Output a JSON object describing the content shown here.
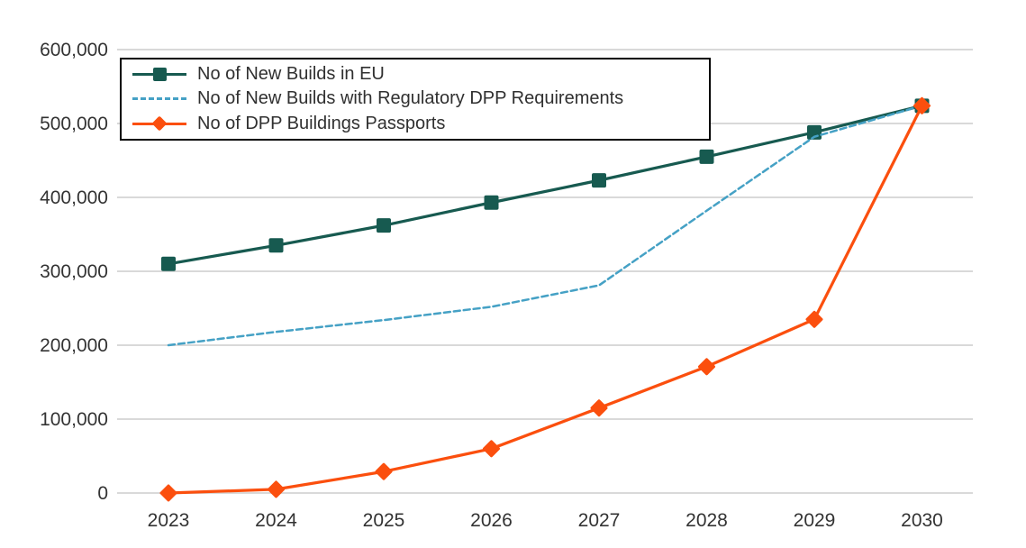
{
  "chart_data": {
    "type": "line",
    "title": "",
    "xlabel": "",
    "ylabel": "",
    "categories": [
      "2023",
      "2024",
      "2025",
      "2026",
      "2027",
      "2028",
      "2029",
      "2030"
    ],
    "series": [
      {
        "name": "No of New Builds in EU",
        "color": "#175a50",
        "line_style": "solid",
        "marker": "square",
        "values": [
          310000,
          335000,
          362000,
          393000,
          423000,
          455000,
          488000,
          524000
        ]
      },
      {
        "name": "No of New Builds with Regulatory DPP Requirements",
        "color": "#45a1c5",
        "line_style": "dashed",
        "marker": "none",
        "values": [
          200000,
          218000,
          234000,
          252000,
          281000,
          382000,
          482000,
          524000
        ]
      },
      {
        "name": "No of DPP Buildings Passports",
        "color": "#fb4f0e",
        "line_style": "solid",
        "marker": "diamond",
        "values": [
          0,
          5000,
          29000,
          60000,
          115000,
          171000,
          235000,
          524000
        ]
      }
    ],
    "y_axis": {
      "min": 0,
      "max": 600000,
      "tick_step": 100000,
      "tick_labels": [
        "0",
        "100,000",
        "200,000",
        "300,000",
        "400,000",
        "500,000",
        "600,000"
      ]
    },
    "grid": true,
    "legend_position": "top-left-inside",
    "colors": {
      "grid": "#d9d9d9",
      "text": "#333333",
      "background": "#ffffff",
      "legend_border": "#000000"
    }
  }
}
